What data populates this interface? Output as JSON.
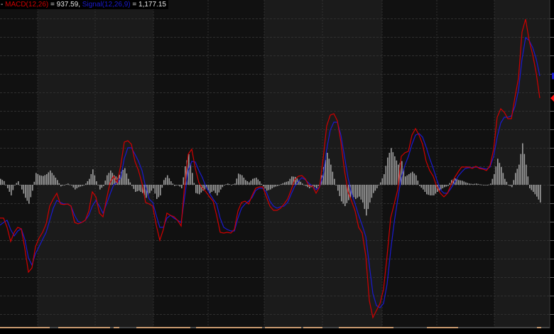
{
  "legend": {
    "prefix": "- ",
    "macd_label": "MACD(12,26)",
    "macd_eq": " = 937.59, ",
    "signal_label": "Signal(12,26,9)",
    "signal_eq": " = 1,177.15"
  },
  "colors": {
    "macd": "#d00000",
    "signal": "#1a1ad0",
    "histogram": "#b4b4b4",
    "band_dark": "#111111",
    "band_light": "#1b1b1b",
    "grid": "#2f2f2f"
  },
  "chart_data": {
    "type": "line",
    "title": "",
    "xlabel": "",
    "ylabel": "",
    "ylim": [
      -1554,
      2000
    ],
    "grid": true,
    "grid_step": 200,
    "last_values": {
      "macd": 937.59,
      "signal": 1177.15
    },
    "series": [
      {
        "name": "MACD(12,26)",
        "kind": "line",
        "values": [
          -361,
          -361,
          -461,
          -615,
          -515,
          -461,
          -477,
          -692,
          -946,
          -900,
          -669,
          -577,
          -515,
          -423,
          -231,
          -154,
          -92,
          -208,
          -215,
          -208,
          -231,
          -408,
          -423,
          -408,
          -385,
          -285,
          -77,
          -131,
          -308,
          -346,
          -154,
          23,
          92,
          23,
          208,
          462,
          477,
          438,
          254,
          154,
          15,
          -192,
          -208,
          -231,
          -438,
          -600,
          -485,
          -308,
          -331,
          -346,
          -385,
          -446,
          0,
          331,
          385,
          177,
          23,
          -38,
          -77,
          -131,
          -177,
          -331,
          -515,
          -523,
          -515,
          -523,
          -485,
          -285,
          -192,
          -177,
          -208,
          -115,
          -38,
          -23,
          -23,
          -131,
          -231,
          -277,
          -277,
          -254,
          -208,
          -154,
          -54,
          54,
          92,
          100,
          62,
          -15,
          -15,
          -92,
          -23,
          285,
          638,
          754,
          769,
          692,
          462,
          154,
          -77,
          -177,
          -285,
          -462,
          -523,
          -769,
          -1254,
          -1438,
          -1361,
          -1285,
          -1131,
          -769,
          -361,
          -208,
          -54,
          308,
          346,
          362,
          538,
          608,
          538,
          438,
          254,
          154,
          92,
          -23,
          -92,
          -131,
          -92,
          0,
          77,
          138,
          192,
          192,
          192,
          177,
          200,
          177,
          169,
          154,
          208,
          385,
          731,
          823,
          785,
          715,
          715,
          946,
          1154,
          1654,
          1792,
          1562,
          1408,
          1208,
          937.59
        ]
      },
      {
        "name": "Signal(12,26,9)",
        "kind": "line",
        "values": [
          -438,
          -408,
          -385,
          -485,
          -554,
          -500,
          -477,
          -592,
          -792,
          -869,
          -746,
          -669,
          -592,
          -515,
          -385,
          -254,
          -169,
          -192,
          -208,
          -208,
          -231,
          -331,
          -400,
          -408,
          -385,
          -331,
          -231,
          -169,
          -231,
          -308,
          -208,
          -100,
          0,
          23,
          77,
          285,
          400,
          400,
          331,
          254,
          154,
          -23,
          -154,
          -192,
          -331,
          -461,
          -461,
          -362,
          -331,
          -362,
          -385,
          -408,
          -131,
          154,
          254,
          246,
          154,
          77,
          -23,
          -92,
          -154,
          -208,
          -362,
          -461,
          -485,
          -500,
          -500,
          -362,
          -254,
          -208,
          -177,
          -138,
          -62,
          -38,
          -38,
          -77,
          -177,
          -231,
          -254,
          -238,
          -231,
          -192,
          -100,
          -15,
          38,
          77,
          54,
          15,
          -15,
          -54,
          -23,
          100,
          385,
          592,
          677,
          677,
          538,
          308,
          77,
          -100,
          -208,
          -331,
          -438,
          -562,
          -869,
          -1177,
          -1308,
          -1331,
          -1285,
          -1077,
          -715,
          -408,
          -154,
          77,
          208,
          308,
          438,
          538,
          554,
          515,
          408,
          285,
          177,
          54,
          -54,
          -92,
          -92,
          -38,
          23,
          92,
          138,
          177,
          185,
          185,
          192,
          185,
          177,
          169,
          192,
          308,
          515,
          669,
          731,
          731,
          746,
          846,
          1023,
          1362,
          1592,
          1562,
          1485,
          1362,
          1177.15
        ]
      },
      {
        "kind": "histogram",
        "values": [
          64,
          40,
          -38,
          -115,
          0,
          38,
          -51,
          -141,
          -205,
          -64,
          128,
          103,
          95,
          115,
          154,
          103,
          51,
          -18,
          0,
          13,
          -8,
          -51,
          -26,
          -13,
          13,
          64,
          167,
          38,
          -51,
          -13,
          103,
          154,
          103,
          77,
          141,
          180,
          64,
          -13,
          -77,
          -64,
          -90,
          -141,
          -90,
          -38,
          -154,
          -115,
          51,
          103,
          38,
          -13,
          0,
          -38,
          200,
          331,
          128,
          -90,
          -103,
          -64,
          -38,
          -90,
          -64,
          -115,
          -51,
          0,
          13,
          0,
          13,
          121,
          103,
          51,
          26,
          64,
          77,
          38,
          -18,
          -64,
          -51,
          -26,
          -13,
          8,
          26,
          38,
          90,
          85,
          51,
          13,
          -13,
          -38,
          -13,
          -38,
          13,
          192,
          346,
          218,
          64,
          -64,
          -180,
          -231,
          -167,
          -115,
          -154,
          -128,
          -192,
          -333,
          -192,
          -90,
          -38,
          26,
          115,
          295,
          397,
          308,
          218,
          256,
          90,
          115,
          141,
          103,
          -13,
          -51,
          -103,
          -115,
          -115,
          -77,
          -51,
          -26,
          -13,
          51,
          69,
          51,
          44,
          26,
          13,
          8,
          13,
          5,
          0,
          -8,
          13,
          115,
          282,
          192,
          64,
          0,
          -26,
          128,
          218,
          449,
          218,
          -38,
          -77,
          -128,
          -192
        ]
      }
    ]
  }
}
